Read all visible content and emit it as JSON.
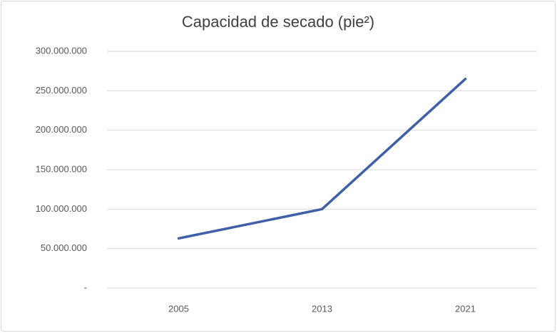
{
  "chart_data": {
    "type": "line",
    "title": "Capacidad de secado (pie²)",
    "categories": [
      "2005",
      "2013",
      "2021"
    ],
    "series": [
      {
        "name": "Capacidad de secado",
        "color": "#3f5fa6",
        "values": [
          63000000,
          100000000,
          265000000
        ]
      }
    ],
    "ylim": [
      0,
      300000000
    ],
    "yticks": [
      {
        "value": 0,
        "label": "-"
      },
      {
        "value": 50000000,
        "label": "50.000.000"
      },
      {
        "value": 100000000,
        "label": "100.000.000"
      },
      {
        "value": 150000000,
        "label": "150.000.000"
      },
      {
        "value": 200000000,
        "label": "200.000.000"
      },
      {
        "value": 250000000,
        "label": "250.000.000"
      },
      {
        "value": 300000000,
        "label": "300.000.000"
      }
    ],
    "grid": true
  }
}
